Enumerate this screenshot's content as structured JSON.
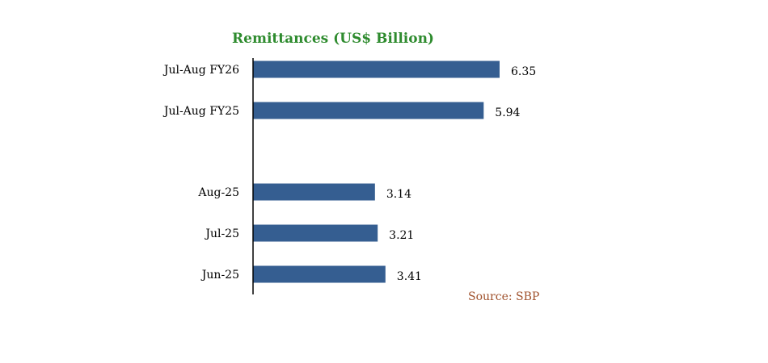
{
  "chart_data": {
    "type": "bar",
    "orientation": "horizontal",
    "title": "Remittances (US$ Billion)",
    "categories": [
      "Jul-Aug FY26",
      "Jul-Aug FY25",
      "Aug-25",
      "Jul-25",
      "Jun-25"
    ],
    "values": [
      6.35,
      5.94,
      3.14,
      3.21,
      3.41
    ],
    "value_labels": [
      "6.35",
      "5.94",
      "3.14",
      "3.21",
      "3.41"
    ],
    "xlabel": "",
    "ylabel": "",
    "xlim": [
      0,
      6.35
    ],
    "grid": false,
    "legend": "none",
    "source": "Source: SBP",
    "colors": {
      "bar": "#355E91",
      "title": "#2E8B2E",
      "source": "#A0522D",
      "axis": "#000000"
    }
  }
}
